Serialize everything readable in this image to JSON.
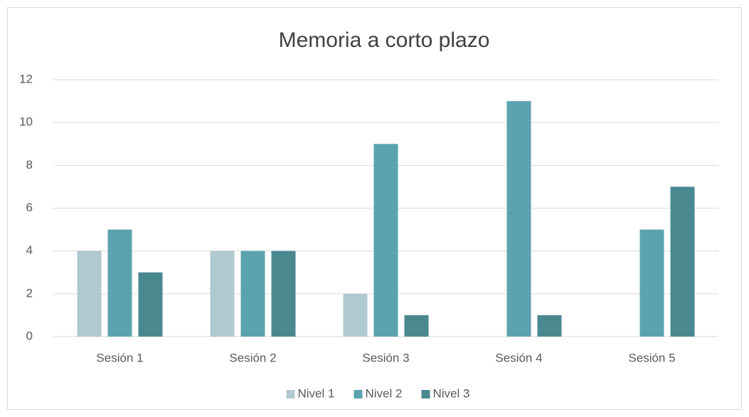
{
  "chart_data": {
    "type": "bar",
    "title": "Memoria a corto plazo",
    "categories": [
      "Sesión 1",
      "Sesión 2",
      "Sesión 3",
      "Sesión 4",
      "Sesión 5"
    ],
    "series": [
      {
        "name": "Nivel 1",
        "color": "#b0c9d0",
        "values": [
          4,
          4,
          2,
          0,
          0
        ]
      },
      {
        "name": "Nivel 2",
        "color": "#5ba3ae",
        "values": [
          5,
          4,
          9,
          11,
          5
        ]
      },
      {
        "name": "Nivel 3",
        "color": "#4a8890",
        "values": [
          3,
          4,
          1,
          1,
          7
        ]
      }
    ],
    "ylim": [
      0,
      12
    ],
    "yticks": [
      0,
      2,
      4,
      6,
      8,
      10,
      12
    ],
    "grid": true,
    "legend": "bottom"
  }
}
